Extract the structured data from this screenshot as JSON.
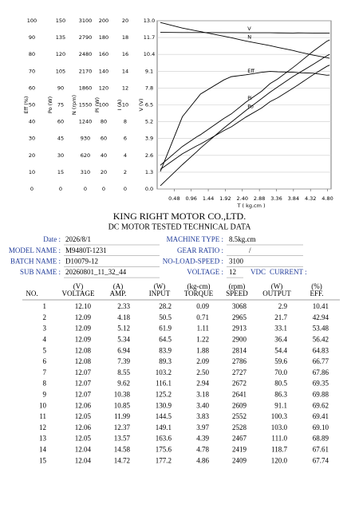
{
  "chart_data": {
    "type": "line",
    "xlabel": "T ( kg.cm )",
    "x": [
      0.09,
      0.71,
      1.11,
      1.22,
      1.88,
      2.09,
      2.5,
      2.94,
      3.18,
      3.4,
      3.83,
      3.97,
      4.39,
      4.78,
      4.86
    ],
    "xlim": [
      0,
      4.9
    ],
    "xticks": [
      0.48,
      0.96,
      1.44,
      1.92,
      {
        "value": 2.4,
        "label": "2.40"
      },
      2.88,
      3.36,
      3.84,
      4.32,
      {
        "value": 4.8,
        "label": "4.80"
      }
    ],
    "grid": true,
    "axes": [
      {
        "label": "Eff (%)",
        "ylim": [
          0,
          100
        ],
        "yticks": [
          0,
          10,
          20,
          30,
          40,
          50,
          60,
          70,
          80,
          90,
          100
        ]
      },
      {
        "label": "Po (W)",
        "ylim": [
          0,
          150
        ],
        "yticks": [
          0,
          15,
          30,
          45,
          60,
          75,
          90,
          105,
          120,
          135,
          150
        ]
      },
      {
        "label": "N (rpm)",
        "ylim": [
          0,
          3100
        ],
        "yticks": [
          0,
          310,
          620,
          930,
          1240,
          1550,
          1860,
          2170,
          2480,
          2790,
          3100
        ]
      },
      {
        "label": "Pi (W)",
        "ylim": [
          0,
          200
        ],
        "yticks": [
          0,
          20,
          40,
          60,
          80,
          100,
          120,
          140,
          160,
          180,
          200
        ]
      },
      {
        "label": "I (A)",
        "ylim": [
          0,
          20
        ],
        "yticks": [
          0,
          2,
          4,
          6,
          8,
          10,
          12,
          14,
          16,
          18,
          20
        ]
      },
      {
        "label": "V (V)",
        "ylim": [
          0,
          13
        ],
        "yticks": [
          {
            "value": 0,
            "label": "0.0"
          },
          1.3,
          2.6,
          3.9,
          5.2,
          6.5,
          7.8,
          9.1,
          10.4,
          11.7,
          {
            "value": 13,
            "label": "13.0"
          }
        ]
      }
    ],
    "series": [
      {
        "name": "V",
        "color": "#000000",
        "axis": 5,
        "values": [
          12.1,
          12.09,
          12.09,
          12.09,
          12.08,
          12.08,
          12.07,
          12.07,
          12.07,
          12.06,
          12.05,
          12.06,
          12.05,
          12.04,
          12.04
        ]
      },
      {
        "name": "N",
        "color": "#000000",
        "axis": 2,
        "values": [
          3068,
          2965,
          2913,
          2900,
          2814,
          2786,
          2727,
          2672,
          2641,
          2609,
          2552,
          2528,
          2467,
          2419,
          2409
        ]
      },
      {
        "name": "Eff",
        "color": "#000000",
        "axis": 0,
        "values": [
          10.41,
          42.94,
          53.48,
          56.42,
          64.83,
          66.77,
          67.86,
          69.35,
          69.88,
          69.62,
          69.41,
          69.1,
          68.89,
          67.61,
          67.74
        ]
      },
      {
        "name": "Pi",
        "color": "#000000",
        "axis": 3,
        "values": [
          28.2,
          50.5,
          61.9,
          64.5,
          83.9,
          89.3,
          103.2,
          116.1,
          125.2,
          130.9,
          144.5,
          149.1,
          163.6,
          175.6,
          177.2
        ]
      },
      {
        "name": "Po",
        "color": "#000000",
        "axis": 1,
        "values": [
          2.9,
          21.7,
          33.1,
          36.4,
          54.4,
          59.6,
          70.0,
          80.5,
          86.3,
          91.1,
          100.3,
          103.0,
          111.0,
          118.7,
          120.0
        ]
      },
      {
        "color": "#000000",
        "axis": 4,
        "values": [
          2.33,
          4.18,
          5.12,
          5.34,
          6.94,
          7.39,
          8.55,
          9.62,
          10.38,
          10.85,
          11.99,
          12.37,
          13.57,
          14.58,
          14.72
        ]
      }
    ]
  },
  "header": {
    "title": "KING RIGHT MOTOR CO.,LTD.",
    "subtitle": "DC MOTOR TESTED TECHNICAL DATA"
  },
  "info": {
    "left": [
      {
        "label": "Date :",
        "value": "2026/8/1"
      },
      {
        "label": "MODEL NAME :",
        "value": "M9480T-1231"
      },
      {
        "label": "BATCH NAME :",
        "value": "D10079-12"
      },
      {
        "label": "SUB NAME :",
        "value": "20260801_11_32_44"
      }
    ],
    "right": [
      {
        "label": "MACHINE TYPE :",
        "value": "8.5kg.cm"
      },
      {
        "label": "GEAR RATIO :",
        "value": "/"
      },
      {
        "label": "NO-LOAD-SPEED :",
        "value": "3100"
      },
      {
        "label": "VOLTAGE :",
        "value": "12",
        "unit": "VDC",
        "extra": "CURRENT :"
      }
    ]
  },
  "table": {
    "units": [
      "(V)",
      "(A)",
      "(W)",
      "(kg-cm)",
      "(rpm)",
      "(W)",
      "(%)"
    ],
    "headers": [
      "NO.",
      "VOLTAGE",
      "AMP.",
      "INPUT",
      "TORQUE",
      "SPEED",
      "OUTPUT",
      "EFF."
    ],
    "rows": [
      [
        "1",
        "12.10",
        "2.33",
        "28.2",
        "0.09",
        "3068",
        "2.9",
        "10.41"
      ],
      [
        "2",
        "12.09",
        "4.18",
        "50.5",
        "0.71",
        "2965",
        "21.7",
        "42.94"
      ],
      [
        "3",
        "12.09",
        "5.12",
        "61.9",
        "1.11",
        "2913",
        "33.1",
        "53.48"
      ],
      [
        "4",
        "12.09",
        "5.34",
        "64.5",
        "1.22",
        "2900",
        "36.4",
        "56.42"
      ],
      [
        "5",
        "12.08",
        "6.94",
        "83.9",
        "1.88",
        "2814",
        "54.4",
        "64.83"
      ],
      [
        "6",
        "12.08",
        "7.39",
        "89.3",
        "2.09",
        "2786",
        "59.6",
        "66.77"
      ],
      [
        "7",
        "12.07",
        "8.55",
        "103.2",
        "2.50",
        "2727",
        "70.0",
        "67.86"
      ],
      [
        "8",
        "12.07",
        "9.62",
        "116.1",
        "2.94",
        "2672",
        "80.5",
        "69.35"
      ],
      [
        "9",
        "12.07",
        "10.38",
        "125.2",
        "3.18",
        "2641",
        "86.3",
        "69.88"
      ],
      [
        "10",
        "12.06",
        "10.85",
        "130.9",
        "3.40",
        "2609",
        "91.1",
        "69.62"
      ],
      [
        "11",
        "12.05",
        "11.99",
        "144.5",
        "3.83",
        "2552",
        "100.3",
        "69.41"
      ],
      [
        "12",
        "12.06",
        "12.37",
        "149.1",
        "3.97",
        "2528",
        "103.0",
        "69.10"
      ],
      [
        "13",
        "12.05",
        "13.57",
        "163.6",
        "4.39",
        "2467",
        "111.0",
        "68.89"
      ],
      [
        "14",
        "12.04",
        "14.58",
        "175.6",
        "4.78",
        "2419",
        "118.7",
        "67.61"
      ],
      [
        "15",
        "12.04",
        "14.72",
        "177.2",
        "4.86",
        "2409",
        "120.0",
        "67.74"
      ]
    ]
  }
}
